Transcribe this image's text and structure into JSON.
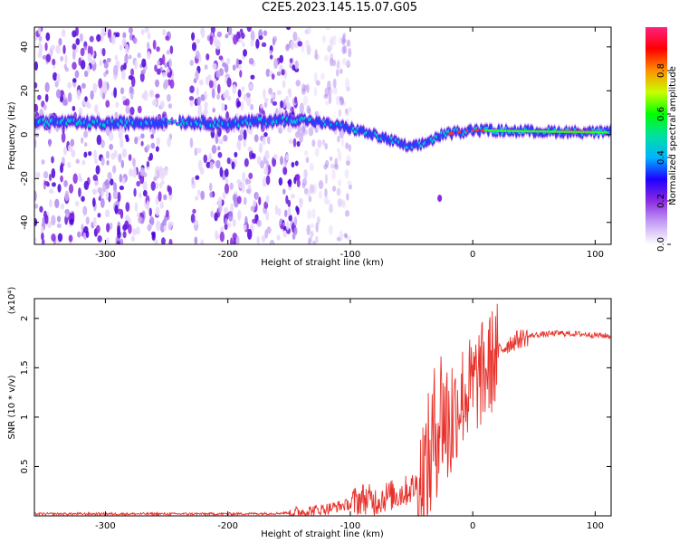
{
  "title": "C2E5.2023.145.15.07.G05",
  "chart_data": [
    {
      "type": "heatmap",
      "xlabel": "Height of straight line (km)",
      "ylabel": "Frequency (Hz)",
      "xlim": [
        -358,
        113
      ],
      "ylim": [
        -50,
        49
      ],
      "xticks": [
        -300,
        -200,
        -100,
        0,
        100
      ],
      "yticks": [
        -40,
        -20,
        0,
        20,
        40
      ],
      "colorbar": {
        "label": "Normalized spectral amplitude",
        "range": [
          0,
          1
        ],
        "ticks": [
          "0.0",
          "0.2",
          "0.4",
          "0.6",
          "0.8"
        ],
        "colors": [
          "#ffffff",
          "#c4a0f4",
          "#8a2be2",
          "#1e00ff",
          "#00b4ff",
          "#00e0a0",
          "#00ff00",
          "#c8ff00",
          "#ff9000",
          "#ff0000",
          "#ff2080"
        ]
      },
      "ridge": [
        {
          "x": -358,
          "y": 6
        },
        {
          "x": -300,
          "y": 5
        },
        {
          "x": -245,
          "y": 6
        },
        {
          "x": -200,
          "y": 5
        },
        {
          "x": -175,
          "y": 6
        },
        {
          "x": -140,
          "y": 7
        },
        {
          "x": -100,
          "y": 3
        },
        {
          "x": -70,
          "y": -2
        },
        {
          "x": -50,
          "y": -6
        },
        {
          "x": -40,
          "y": -4
        },
        {
          "x": -25,
          "y": 0
        },
        {
          "x": 0,
          "y": 2
        },
        {
          "x": 50,
          "y": 1.5
        },
        {
          "x": 113,
          "y": 1
        }
      ],
      "noise_bands": [
        [
          -358,
          -245
        ],
        [
          -230,
          -140
        ]
      ],
      "noise_fade": [
        -140,
        -100
      ]
    },
    {
      "type": "line",
      "xlabel": "Height of straight line (km)",
      "ylabel": "SNR (10 * v/v)",
      "yscale_label": "(x10⁴)",
      "xlim": [
        -358,
        113
      ],
      "ylim": [
        0,
        2.2
      ],
      "xticks": [
        -300,
        -200,
        -100,
        0,
        100
      ],
      "yticks": [
        0.5,
        1.0,
        1.5,
        2.0
      ],
      "series": [
        {
          "color": "#e8312a",
          "x": [
            -358,
            -300,
            -250,
            -200,
            -160,
            -140,
            -120,
            -100,
            -90,
            -80,
            -70,
            -60,
            -50,
            -40,
            -35,
            -30,
            -25,
            -20,
            -15,
            -10,
            -5,
            0,
            5,
            10,
            15,
            20,
            30,
            40,
            50,
            70,
            90,
            113
          ],
          "y": [
            0.02,
            0.02,
            0.02,
            0.02,
            0.025,
            0.04,
            0.07,
            0.12,
            0.18,
            0.15,
            0.2,
            0.22,
            0.28,
            0.35,
            0.55,
            0.9,
            1.1,
            0.9,
            1.05,
            1.2,
            1.25,
            1.3,
            1.4,
            1.45,
            1.55,
            1.65,
            1.75,
            1.8,
            1.83,
            1.85,
            1.84,
            1.82
          ]
        }
      ]
    }
  ]
}
